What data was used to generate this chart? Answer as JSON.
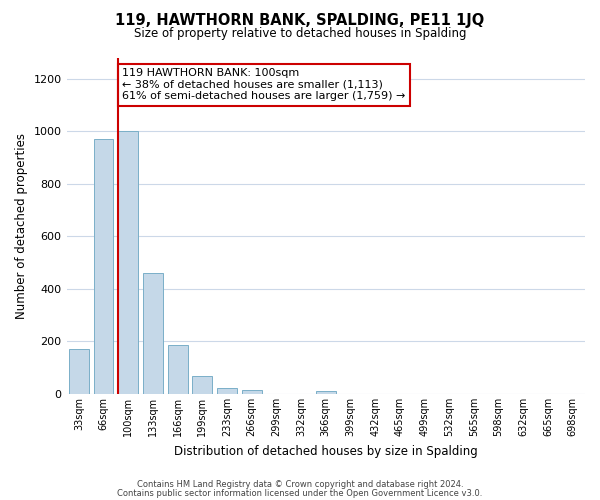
{
  "title": "119, HAWTHORN BANK, SPALDING, PE11 1JQ",
  "subtitle": "Size of property relative to detached houses in Spalding",
  "xlabel": "Distribution of detached houses by size in Spalding",
  "ylabel": "Number of detached properties",
  "bar_labels": [
    "33sqm",
    "66sqm",
    "100sqm",
    "133sqm",
    "166sqm",
    "199sqm",
    "233sqm",
    "266sqm",
    "299sqm",
    "332sqm",
    "366sqm",
    "399sqm",
    "432sqm",
    "465sqm",
    "499sqm",
    "532sqm",
    "565sqm",
    "598sqm",
    "632sqm",
    "665sqm",
    "698sqm"
  ],
  "bar_values": [
    170,
    970,
    1000,
    460,
    185,
    70,
    22,
    15,
    0,
    0,
    10,
    0,
    0,
    0,
    0,
    0,
    0,
    0,
    0,
    0,
    0
  ],
  "highlight_index": 2,
  "bar_color": "#c5d8e8",
  "bar_edge_color": "#7aafc8",
  "highlight_line_color": "#cc0000",
  "ylim": [
    0,
    1280
  ],
  "yticks": [
    0,
    200,
    400,
    600,
    800,
    1000,
    1200
  ],
  "annotation_title": "119 HAWTHORN BANK: 100sqm",
  "annotation_line1": "← 38% of detached houses are smaller (1,113)",
  "annotation_line2": "61% of semi-detached houses are larger (1,759) →",
  "footer_line1": "Contains HM Land Registry data © Crown copyright and database right 2024.",
  "footer_line2": "Contains public sector information licensed under the Open Government Licence v3.0.",
  "background_color": "#ffffff",
  "grid_color": "#ccd8e8"
}
